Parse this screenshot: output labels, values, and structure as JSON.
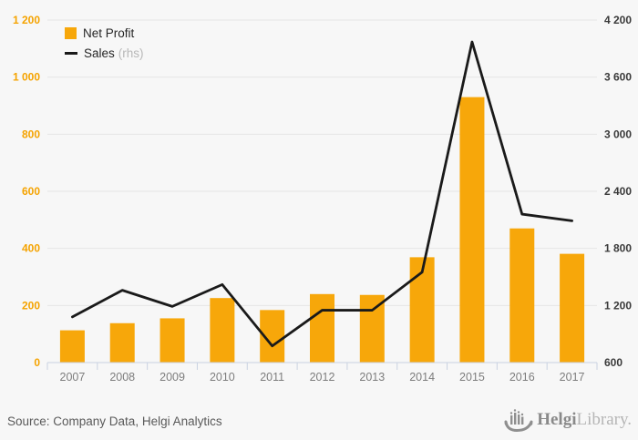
{
  "chart_data": {
    "type": "bar",
    "categories": [
      "2007",
      "2008",
      "2009",
      "2010",
      "2011",
      "2012",
      "2013",
      "2014",
      "2015",
      "2016",
      "2017"
    ],
    "series": [
      {
        "name": "Net Profit",
        "type": "bar",
        "axis": "left",
        "color": "#f7a70a",
        "values": [
          113,
          138,
          155,
          226,
          184,
          240,
          237,
          369,
          930,
          470,
          381
        ]
      },
      {
        "name": "Sales",
        "type": "line",
        "axis": "right",
        "color": "#1a1a1a",
        "values": [
          1080,
          1360,
          1190,
          1420,
          775,
          1150,
          1150,
          1550,
          3970,
          2160,
          2090
        ]
      }
    ],
    "title": "",
    "xlabel": "",
    "ylabel": "",
    "left_axis": {
      "min": 0,
      "max": 1200,
      "tick_labels": [
        "0",
        "200",
        "400",
        "600",
        "800",
        "1 000",
        "1 200"
      ]
    },
    "right_axis": {
      "min": 600,
      "max": 4200,
      "tick_labels": [
        "600",
        "1 200",
        "1 800",
        "2 400",
        "3 000",
        "3 600",
        "4 200"
      ]
    },
    "grid": true,
    "legend_position": "top-left",
    "legend": [
      {
        "label": "Net Profit",
        "suffix": ""
      },
      {
        "label": "Sales",
        "suffix": "(rhs)"
      }
    ]
  },
  "colors": {
    "background": "#f7f7f7",
    "grid": "#e6e6e6",
    "axis": "#c9d2e2",
    "bar": "#f7a70a",
    "line": "#1a1a1a",
    "xlabel": "#7d7d7d",
    "left-label": "#f5a300",
    "right-label": "#3a3a3a",
    "source-text": "#5a5a5a",
    "logo-dark": "#8a8a8a",
    "logo-light": "#b5b5b5"
  },
  "footer": {
    "source": "Source: Company Data, Helgi Analytics",
    "logo_bold": "Helgi",
    "logo_light": "Library."
  }
}
